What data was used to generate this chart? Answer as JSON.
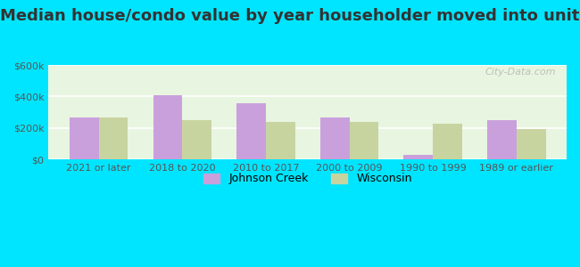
{
  "title": "Median house/condo value by year householder moved into unit",
  "categories": [
    "2021 or later",
    "2018 to 2020",
    "2010 to 2017",
    "2000 to 2009",
    "1990 to 1999",
    "1989 or earlier"
  ],
  "johnson_creek": [
    265000,
    410000,
    355000,
    270000,
    30000,
    248000
  ],
  "wisconsin": [
    265000,
    248000,
    238000,
    238000,
    228000,
    195000
  ],
  "johnson_creek_color": "#c9a0dc",
  "wisconsin_color": "#c8d4a0",
  "background_outer": "#00e5ff",
  "background_inner_top": "#e8f5e0",
  "background_inner_bottom": "#d0eedd",
  "ylim": [
    0,
    600000
  ],
  "yticks": [
    0,
    200000,
    400000,
    600000
  ],
  "ytick_labels": [
    "$0",
    "$200k",
    "$400k",
    "$600k"
  ],
  "legend_johnson_creek": "Johnson Creek",
  "legend_wisconsin": "Wisconsin",
  "title_fontsize": 13,
  "bar_width": 0.35,
  "watermark": "City-Data.com"
}
